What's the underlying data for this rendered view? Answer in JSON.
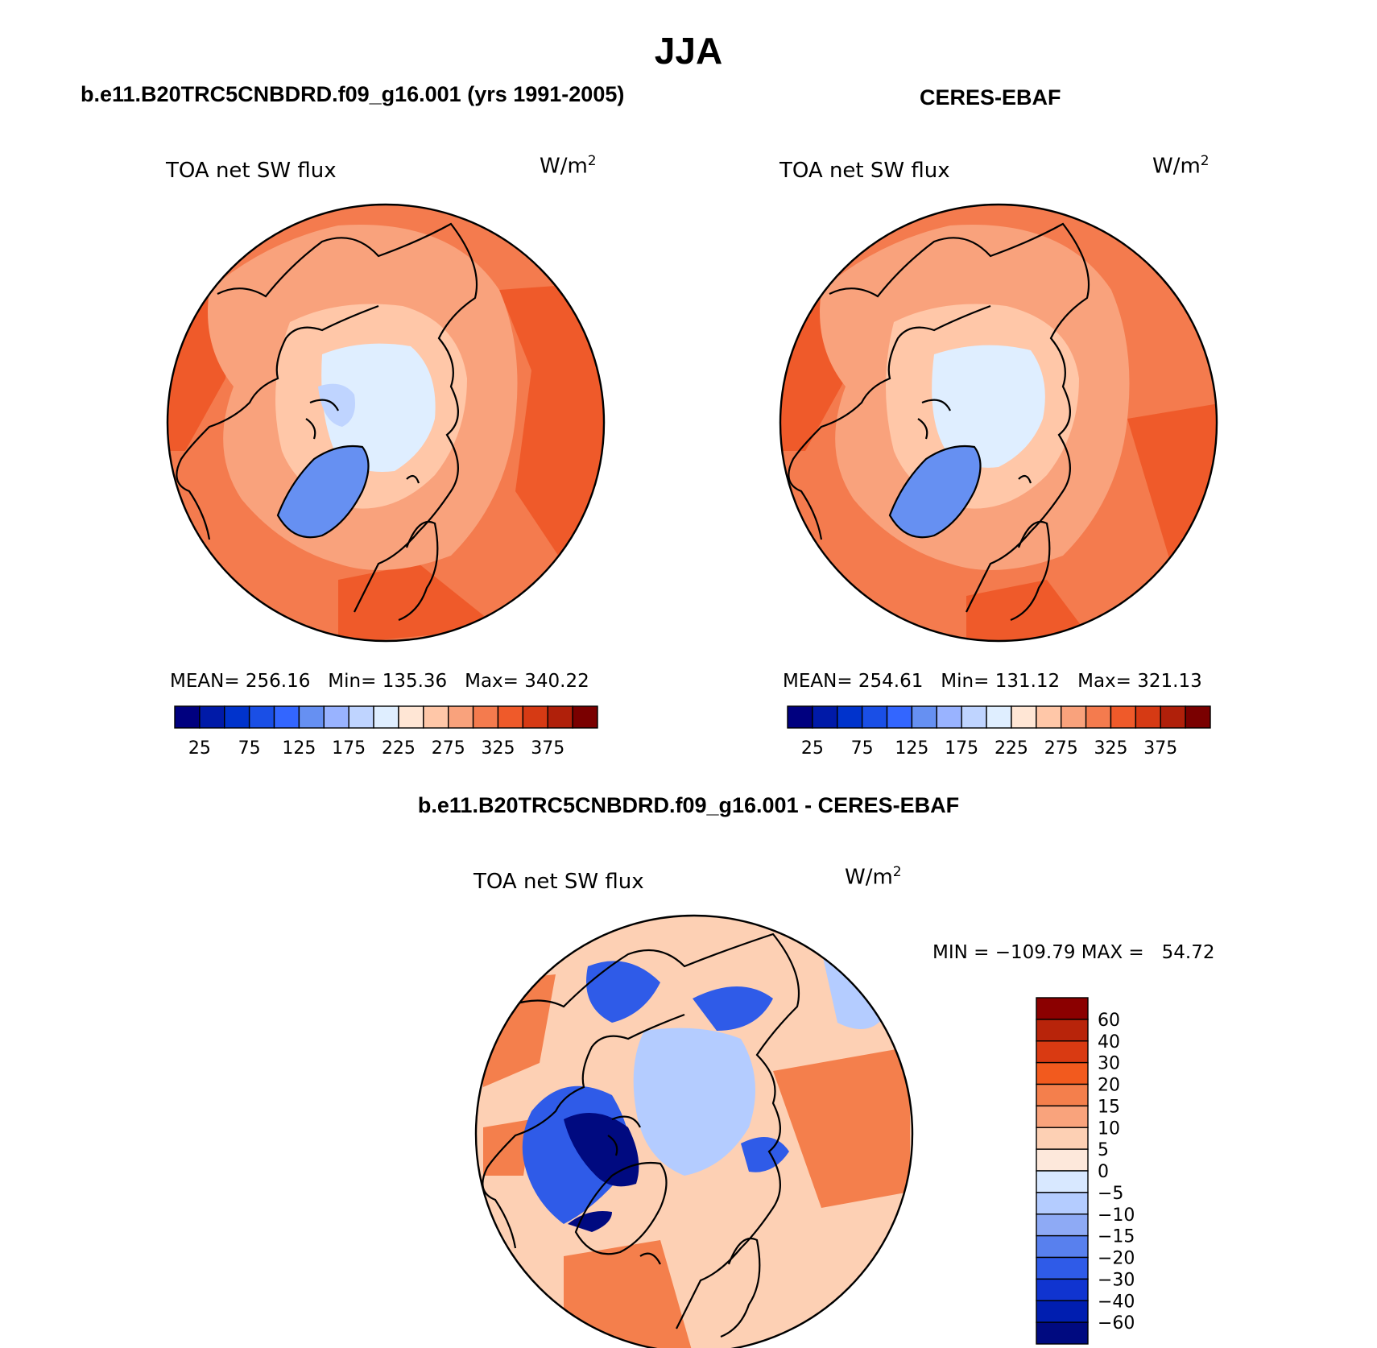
{
  "figure": {
    "title": "JJA",
    "diff_header": "b.e11.B20TRC5CNBDRD.f09_g16.001 - CERES-EBAF"
  },
  "panels": [
    {
      "header": "b.e11.B20TRC5CNBDRD.f09_g16.001 (yrs 1991-2005)",
      "variable": "TOA net SW flux",
      "units_base": "W/m",
      "units_exp": "2",
      "stats": "MEAN= 256.16   Min= 135.36   Max= 340.22"
    },
    {
      "header": "CERES-EBAF",
      "variable": "TOA net SW flux",
      "units_base": "W/m",
      "units_exp": "2",
      "stats": "MEAN= 254.61   Min= 131.12   Max= 321.13"
    },
    {
      "variable": "TOA net SW flux",
      "units_base": "W/m",
      "units_exp": "2",
      "stats": "MIN = −109.79 MAX =   54.72"
    }
  ],
  "main_colorbar": {
    "colors": [
      "#00007f",
      "#001aa8",
      "#0033cc",
      "#1a4fe6",
      "#3366ff",
      "#6690f2",
      "#99b3ff",
      "#bfd4ff",
      "#dfeeff",
      "#ffe6d5",
      "#ffc7a8",
      "#f9a27c",
      "#f47b4e",
      "#ef5a2a",
      "#d63a14",
      "#b0200a",
      "#7a0000"
    ],
    "tick_labels": [
      "25",
      "75",
      "125",
      "175",
      "225",
      "275",
      "325",
      "375"
    ]
  },
  "diff_colorbar": {
    "colors": [
      "#8b0000",
      "#b8240a",
      "#d93a12",
      "#f25a1e",
      "#f47f4c",
      "#f9a37c",
      "#fdd0b4",
      "#fde8db",
      "#d8e8ff",
      "#b4ccff",
      "#8eaaf5",
      "#5880ee",
      "#2f5be8",
      "#1034d0",
      "#001eb0",
      "#000a80"
    ],
    "tick_labels": [
      "60",
      "40",
      "30",
      "20",
      "15",
      "10",
      "5",
      "0",
      "−5",
      "−10",
      "−15",
      "−20",
      "−30",
      "−40",
      "−60"
    ]
  },
  "map_colors": {
    "ocean": "#f47b4e",
    "ocean_dark": "#ef5a2a",
    "land": "#f9a27c",
    "land_light": "#ffc7a8",
    "ice": "#dfeeff",
    "ice_mid": "#bfd4ff",
    "greenland": "#6690f2",
    "diff_base": "#fdd0b4",
    "diff_warm": "#f47f4c",
    "diff_cool": "#b4ccff",
    "diff_blue": "#2f5be8",
    "diff_deep": "#000a80"
  }
}
